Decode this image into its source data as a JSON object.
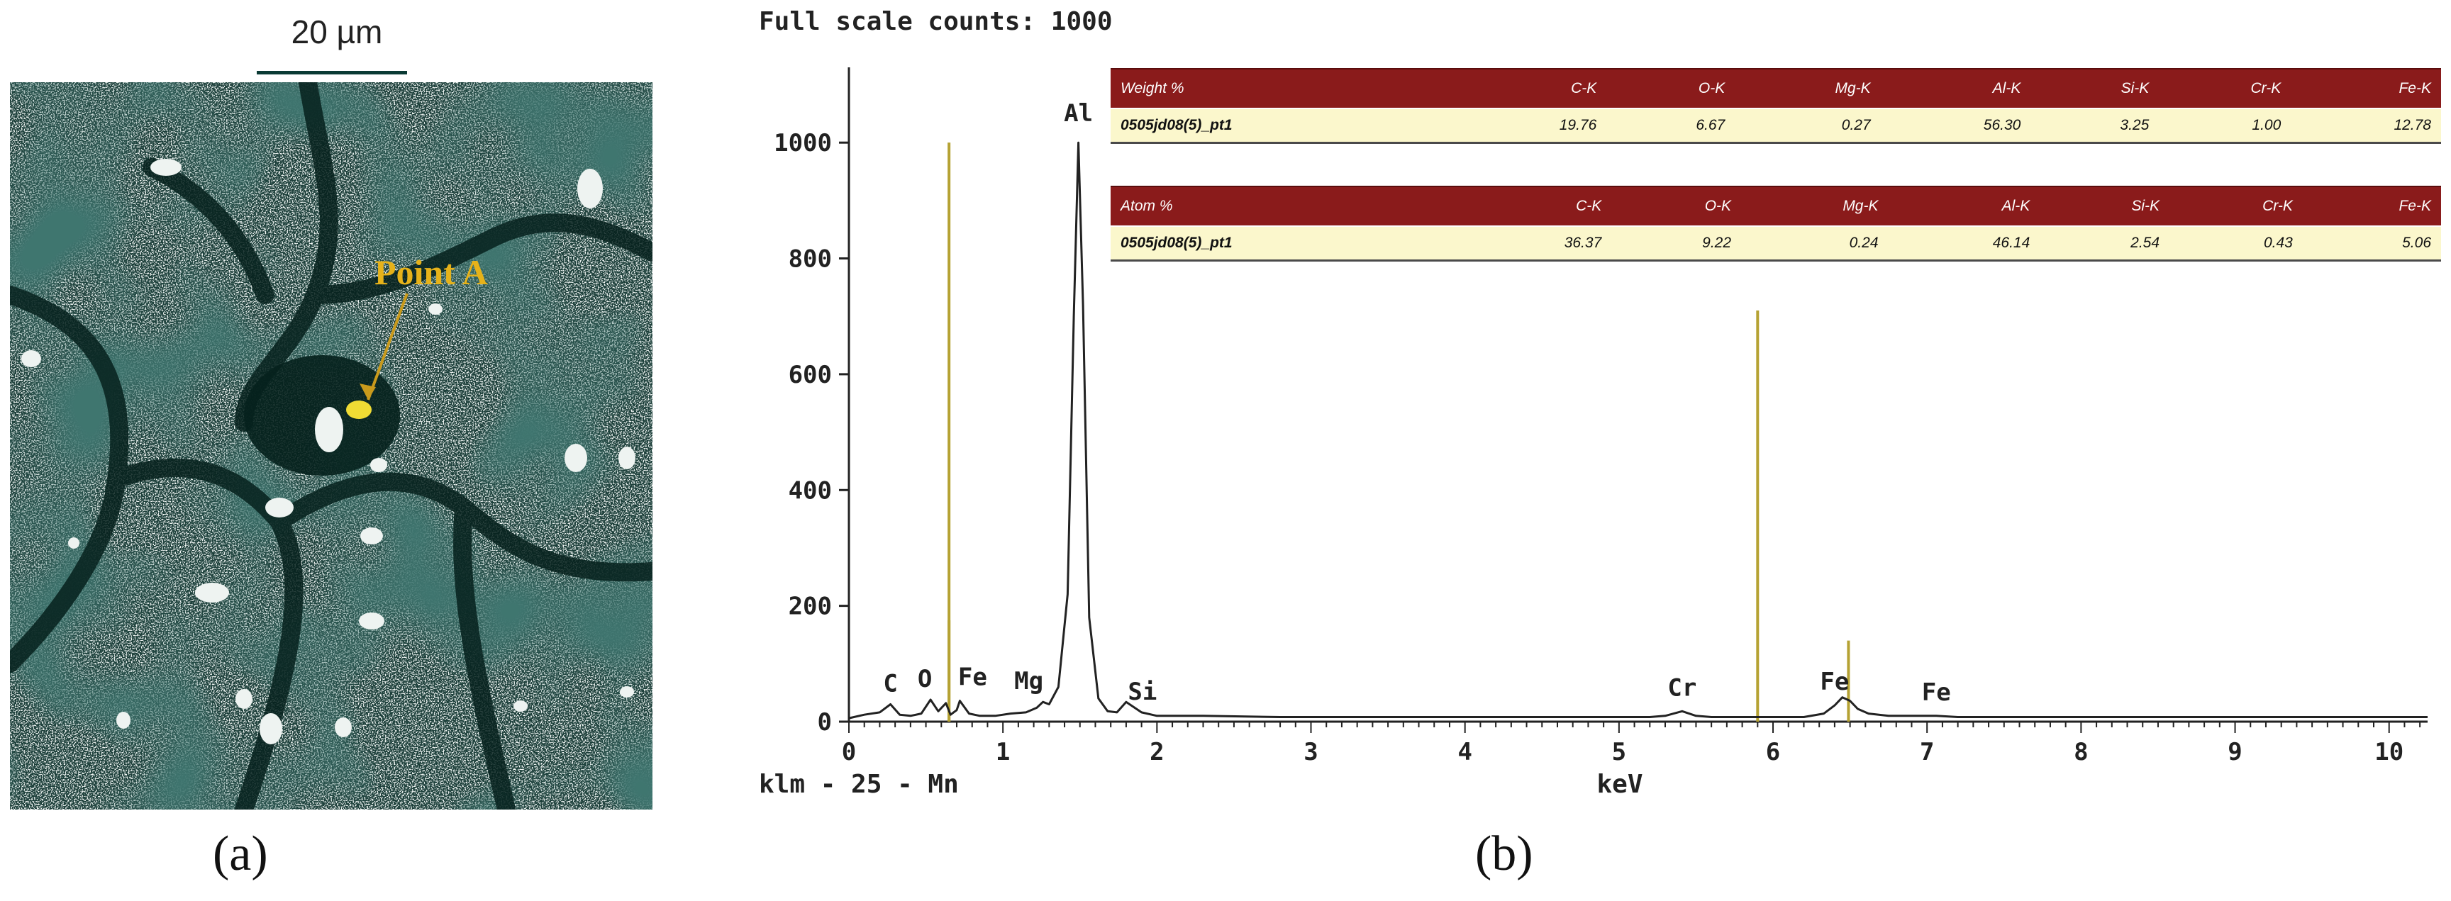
{
  "panel_a": {
    "scale_bar_label": "20 µm",
    "point_label": "Point A",
    "panel_label": "(a)",
    "colors": {
      "background": "#0d2f2a",
      "speckle": "#dfe7e4",
      "marker": "#f0dc34",
      "label": "#e6b21a"
    }
  },
  "panel_b": {
    "panel_label": "(b)",
    "weight_table": {
      "headers": [
        "Weight %",
        "C-K",
        "O-K",
        "Mg-K",
        "Al-K",
        "Si-K",
        "Cr-K",
        "Fe-K"
      ],
      "rows": [
        [
          "0505jd08(5)_pt1",
          "19.76",
          "6.67",
          "0.27",
          "56.30",
          "3.25",
          "1.00",
          "12.78"
        ]
      ]
    },
    "atom_table": {
      "headers": [
        "Atom %",
        "C-K",
        "O-K",
        "Mg-K",
        "Al-K",
        "Si-K",
        "Cr-K",
        "Fe-K"
      ],
      "rows": [
        [
          "0505jd08(5)_pt1",
          "36.37",
          "9.22",
          "0.24",
          "46.14",
          "2.54",
          "0.43",
          "5.06"
        ]
      ]
    },
    "colors": {
      "table_header": "#8a1b1b",
      "table_row": "#fbf7cc",
      "marker_line": "#b5a233",
      "spectrum": "#222222"
    }
  },
  "chart_data": {
    "type": "line",
    "header": "Full scale counts: 1000",
    "footer": "klm - 25 - Mn",
    "xlabel": "keV",
    "ylabel": "",
    "xlim": [
      0,
      10.25
    ],
    "ylim": [
      0,
      1130
    ],
    "x_ticks": [
      "0",
      "1",
      "2",
      "3",
      "4",
      "5",
      "6",
      "7",
      "8",
      "9",
      "10"
    ],
    "y_ticks": [
      "0",
      "200",
      "400",
      "600",
      "800",
      "1000"
    ],
    "grid": false,
    "series": [
      {
        "x": [
          0.0,
          0.1,
          0.2,
          0.27,
          0.33,
          0.4,
          0.47,
          0.53,
          0.58,
          0.63,
          0.66,
          0.7,
          0.72,
          0.78,
          0.85,
          0.95,
          1.05,
          1.15,
          1.22,
          1.26,
          1.3,
          1.36,
          1.42,
          1.46,
          1.49,
          1.52,
          1.56,
          1.62,
          1.68,
          1.74,
          1.8,
          1.9,
          2.0,
          2.3,
          2.8,
          3.3,
          3.8,
          4.3,
          4.8,
          5.2,
          5.3,
          5.41,
          5.5,
          5.6,
          5.9,
          6.2,
          6.33,
          6.4,
          6.45,
          6.5,
          6.55,
          6.62,
          6.75,
          7.06,
          7.2,
          7.6,
          8.0,
          8.5,
          9.0,
          9.5,
          10.0,
          10.25
        ],
        "y": [
          6,
          12,
          16,
          30,
          12,
          10,
          14,
          38,
          18,
          32,
          12,
          20,
          36,
          14,
          10,
          10,
          14,
          16,
          24,
          34,
          30,
          60,
          220,
          700,
          1000,
          720,
          180,
          40,
          18,
          16,
          34,
          16,
          10,
          10,
          8,
          8,
          8,
          8,
          8,
          8,
          10,
          18,
          10,
          8,
          8,
          8,
          14,
          28,
          42,
          36,
          22,
          14,
          10,
          10,
          8,
          8,
          8,
          8,
          8,
          8,
          8,
          8
        ]
      }
    ],
    "peak_labels": [
      {
        "label": "C",
        "x": 0.27,
        "y": 30
      },
      {
        "label": "O",
        "x": 0.53,
        "y": 38
      },
      {
        "label": "Fe",
        "x": 0.72,
        "y": 36
      },
      {
        "label": "Mg",
        "x": 1.26,
        "y": 34
      },
      {
        "label": "Al",
        "x": 1.49,
        "y": 1000
      },
      {
        "label": "Si",
        "x": 1.74,
        "y": 16
      },
      {
        "label": "Cr",
        "x": 5.41,
        "y": 18
      },
      {
        "label": "Fe",
        "x": 6.4,
        "y": 28
      },
      {
        "label": "Fe",
        "x": 7.06,
        "y": 10
      }
    ],
    "marker_lines": [
      {
        "x": 0.65,
        "y": 1000
      },
      {
        "x": 0.65,
        "y": 175
      },
      {
        "x": 5.9,
        "y": 710
      },
      {
        "x": 6.49,
        "y": 140
      }
    ]
  }
}
